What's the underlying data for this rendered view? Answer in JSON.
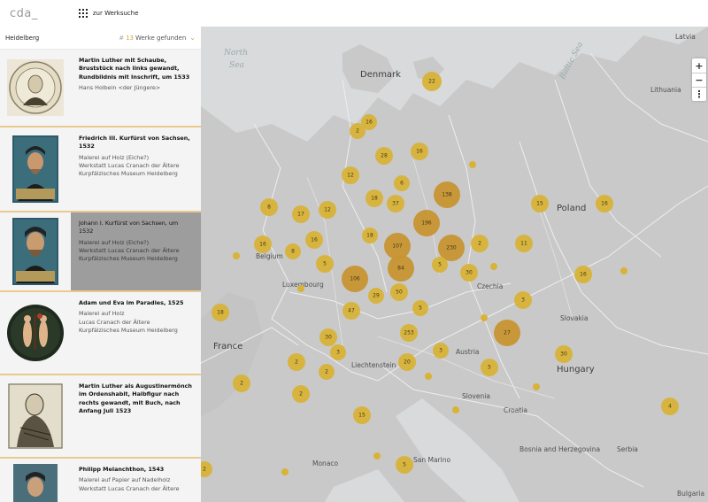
{
  "header": {
    "logo": "cda_",
    "search_link": "zur Werksuche"
  },
  "sidebar": {
    "place": "Heidelberg",
    "count_prefix": "#",
    "count": "13",
    "count_suffix": "Werke gefunden",
    "items": [
      {
        "title": "Martin Luther mit Schaube, Bruststück nach links gewandt, Rundbildnis mit Inschrift, um 1533",
        "meta": [
          "Hans Holbein <der Jüngere>"
        ]
      },
      {
        "title": "Friedrich III. Kurfürst von Sachsen, 1532",
        "meta": [
          "Malerei auf Holz (Eiche?)",
          "Werkstatt Lucas Cranach der Ältere",
          "Kurpfälzisches Museum Heidelberg"
        ]
      },
      {
        "title": "Johann I. Kurfürst von Sachsen, um 1532",
        "meta": [
          "Malerei auf Holz (Eiche?)",
          "Werkstatt Lucas Cranach der Ältere",
          "Kurpfälzisches Museum Heidelberg"
        ]
      },
      {
        "title": "Adam und Eva im Paradies, 1525",
        "meta": [
          "Malerei auf Holz",
          "Lucas Cranach der Ältere",
          "Kurpfälzisches Museum Heidelberg"
        ]
      },
      {
        "title": "Martin Luther als Augustinermönch im Ordenshabit, Halbfigur nach rechts gewandt, mit Buch, nach Anfang Juli 1523",
        "meta": []
      },
      {
        "title": "Philipp Melanchthon, 1543",
        "meta": [
          "Malerei auf Papier auf Nadelholz",
          "Werkstatt Lucas Cranach der Ältere"
        ]
      }
    ]
  },
  "map": {
    "zoom_in": "+",
    "zoom_out": "−",
    "more": "⋮",
    "seas": [
      "North",
      "Sea",
      "Baltic Sea"
    ],
    "countries": [
      "Denmark",
      "Poland",
      "Lithuania",
      "Latvia",
      "Belgium",
      "Luxembourg",
      "France",
      "Czechia",
      "Austria",
      "Slovakia",
      "Hungary",
      "Liechtenstein",
      "Slovenia",
      "Croatia",
      "Bosnia and Herzegovina",
      "San Marino",
      "Bulgaria",
      "Serbia",
      "Monaco"
    ],
    "clusters": [
      "22",
      "16",
      "2",
      "28",
      "16",
      "12",
      "6",
      "138",
      "8",
      "17",
      "12",
      "18",
      "37",
      "196",
      "15",
      "16",
      "16",
      "8",
      "16",
      "18",
      "107",
      "230",
      "2",
      "11",
      "5",
      "84",
      "5",
      "30",
      "106",
      "29",
      "50",
      "16",
      "18",
      "47",
      "5",
      "3",
      "30",
      "253",
      "27",
      "30",
      "3",
      "2",
      "20",
      "3",
      "5",
      "2",
      "2",
      "2",
      "4",
      "15",
      "5",
      "2"
    ],
    "accent_color": "#d8b338",
    "accent_dark": "#c79531"
  }
}
